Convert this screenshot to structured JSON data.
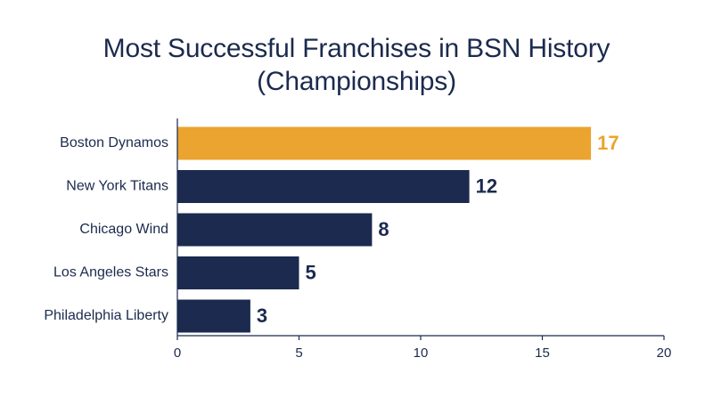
{
  "chart_data": {
    "type": "bar",
    "orientation": "horizontal",
    "title_line1": "Most Successful Franchises in BSN History",
    "title_line2": "(Championships)",
    "categories": [
      "Boston Dynamos",
      "New York Titans",
      "Chicago Wind",
      "Los Angeles Stars",
      "Philadelphia Liberty"
    ],
    "values": [
      17,
      12,
      8,
      5,
      3
    ],
    "xlim": [
      0,
      20
    ],
    "xticks": [
      "0",
      "5",
      "10",
      "15",
      "20"
    ],
    "grid": false,
    "legend": "none",
    "highlight_index": 0,
    "colors": {
      "highlight": "#eba42f",
      "bar": "#1b2a4e",
      "axis": "#1b2a4e"
    }
  }
}
